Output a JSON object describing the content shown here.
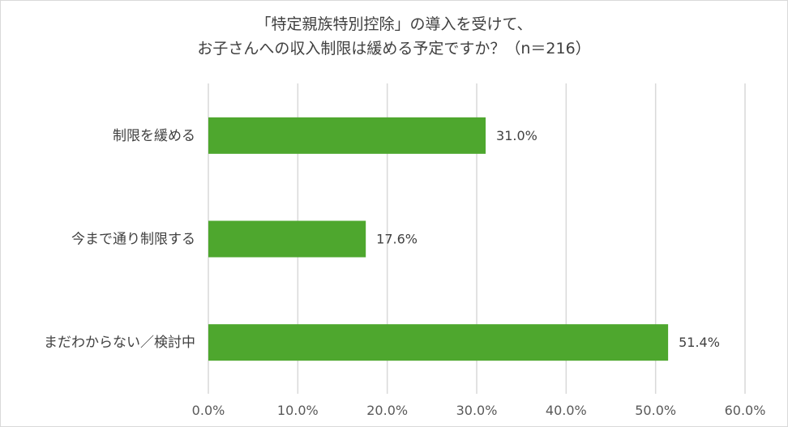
{
  "chart_data": {
    "type": "bar",
    "orientation": "horizontal",
    "title_lines": [
      "「特定親族特別控除」の導入を受けて、",
      "お子さんへの収入制限は緩める予定ですか？（n＝216）"
    ],
    "categories": [
      "制限を緩める",
      "今まで通り制限する",
      "まだわからない／検討中"
    ],
    "values": [
      31.0,
      17.6,
      51.4
    ],
    "data_labels": [
      "31.0%",
      "17.6%",
      "51.4%"
    ],
    "xlim": [
      0,
      60
    ],
    "x_ticks": [
      "0.0%",
      "10.0%",
      "20.0%",
      "30.0%",
      "40.0%",
      "50.0%",
      "60.0%"
    ],
    "grid": "vertical",
    "bar_color": "#4ea72e",
    "grid_color": "#d9d9d9"
  }
}
